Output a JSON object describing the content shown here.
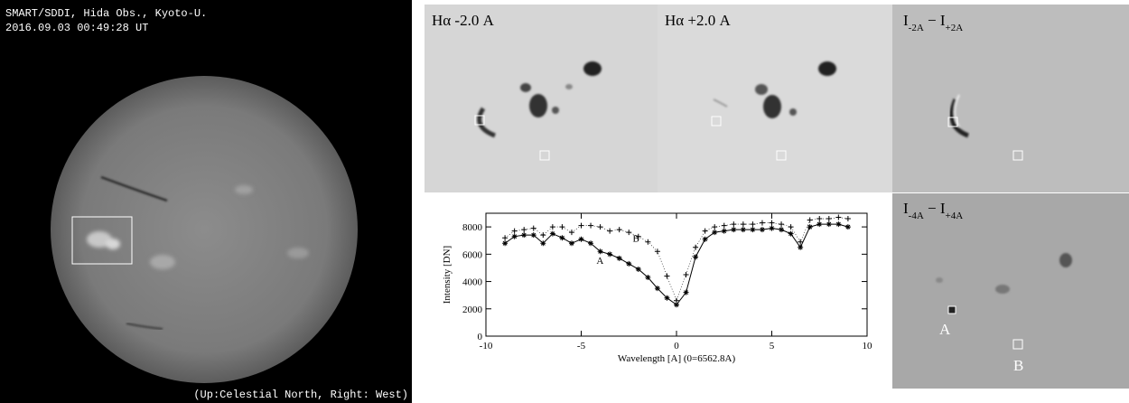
{
  "figure": {
    "full_disk": {
      "line1": "SMART/SDDI, Hida Obs., Kyoto-U.",
      "line2": "2016.09.03 00:49:28 UT",
      "orientation": "(Up:Celestial North, Right: West)"
    },
    "panels": [
      {
        "parts": [
          "Hα -2.0 A"
        ]
      },
      {
        "parts": [
          "Hα +2.0 A"
        ]
      },
      {
        "parts": [
          "I",
          "-2A",
          " − I",
          "+2A"
        ]
      },
      {
        "parts": [
          "I",
          "-4A",
          " − I",
          "+4A"
        ]
      }
    ],
    "map_labels": [
      "A",
      "B"
    ]
  },
  "chart_data": {
    "type": "line",
    "xlabel": "Wavelength [A] (0=6562.8A)",
    "ylabel": "Intensity [DN]",
    "x": [
      -9,
      -8.5,
      -8,
      -7.5,
      -7,
      -6.5,
      -6,
      -5.5,
      -5,
      -4.5,
      -4,
      -3.5,
      -3,
      -2.5,
      -2,
      -1.5,
      -1,
      -0.5,
      0,
      0.5,
      1,
      1.5,
      2,
      2.5,
      3,
      3.5,
      4,
      4.5,
      5,
      5.5,
      6,
      6.5,
      7,
      7.5,
      8,
      8.5,
      9
    ],
    "series": [
      {
        "name": "A",
        "marker": "asterisk",
        "color": "#000000",
        "values": [
          6800,
          7300,
          7400,
          7400,
          6800,
          7500,
          7200,
          6800,
          7100,
          6800,
          6200,
          6000,
          5700,
          5300,
          4900,
          4300,
          3500,
          2800,
          2300,
          3200,
          5800,
          7100,
          7600,
          7700,
          7800,
          7800,
          7800,
          7800,
          7900,
          7800,
          7500,
          6500,
          8000,
          8200,
          8200,
          8200,
          8000
        ]
      },
      {
        "name": "B",
        "marker": "plus",
        "color": "#000000",
        "values": [
          7200,
          7700,
          7800,
          7900,
          7400,
          8000,
          8000,
          7600,
          8100,
          8100,
          8000,
          7700,
          7800,
          7600,
          7300,
          6900,
          6200,
          4400,
          2600,
          4500,
          6500,
          7700,
          8000,
          8100,
          8200,
          8200,
          8200,
          8300,
          8300,
          8200,
          8000,
          6900,
          8500,
          8600,
          8600,
          8700,
          8600
        ]
      }
    ],
    "xlim": [
      -10,
      10
    ],
    "xticks": [
      -10,
      -5,
      0,
      5,
      10
    ],
    "ylim": [
      0,
      9000
    ],
    "yticks": [
      0,
      2000,
      4000,
      6000,
      8000
    ]
  }
}
